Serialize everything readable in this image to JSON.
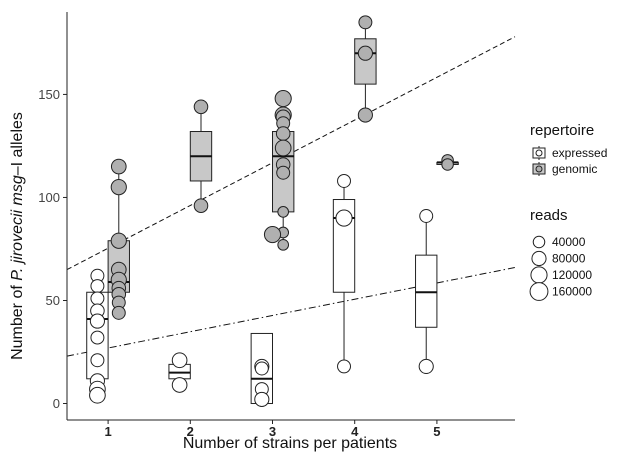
{
  "chart_data": {
    "type": "boxplot",
    "xlabel": "Number of strains per patients",
    "ylabel_parts": [
      "Number of ",
      "P. jirovecii msg",
      "–I alleles"
    ],
    "categories": [
      "1",
      "2",
      "3",
      "4",
      "5"
    ],
    "xlim": [
      0.5,
      5.95
    ],
    "ylim": [
      -8,
      190
    ],
    "yticks": [
      0,
      50,
      100,
      150
    ],
    "series": [
      {
        "name": "expressed",
        "fill": "#ffffff",
        "boxes": [
          {
            "x": 1,
            "q1": 12,
            "median": 41,
            "q3": 54,
            "whisker_low": 4,
            "whisker_high": 63
          },
          {
            "x": 2,
            "q1": 12,
            "median": 15,
            "q3": 19,
            "whisker_low": 12,
            "whisker_high": 19
          },
          {
            "x": 3,
            "q1": 0,
            "median": 12,
            "q3": 34,
            "whisker_low": 0,
            "whisker_high": 34
          },
          {
            "x": 4,
            "q1": 54,
            "median": 90,
            "q3": 99,
            "whisker_low": 18,
            "whisker_high": 108
          },
          {
            "x": 5,
            "q1": 37,
            "median": 54,
            "q3": 72,
            "whisker_low": 18,
            "whisker_high": 91
          }
        ],
        "points": [
          {
            "x": 1,
            "y": 62,
            "reads": 60000
          },
          {
            "x": 1,
            "y": 57,
            "reads": 60000
          },
          {
            "x": 1,
            "y": 51,
            "reads": 60000
          },
          {
            "x": 1,
            "y": 45,
            "reads": 70000
          },
          {
            "x": 1,
            "y": 40,
            "reads": 80000
          },
          {
            "x": 1,
            "y": 32,
            "reads": 60000
          },
          {
            "x": 1,
            "y": 21,
            "reads": 60000
          },
          {
            "x": 1,
            "y": 11,
            "reads": 80000
          },
          {
            "x": 1,
            "y": 7,
            "reads": 110000
          },
          {
            "x": 1,
            "y": 4,
            "reads": 110000
          },
          {
            "x": 2,
            "y": 21,
            "reads": 90000
          },
          {
            "x": 2,
            "y": 9,
            "reads": 90000
          },
          {
            "x": 3,
            "y": 18,
            "reads": 80000
          },
          {
            "x": 3,
            "y": 17,
            "reads": 60000
          },
          {
            "x": 3,
            "y": 7,
            "reads": 60000
          },
          {
            "x": 3,
            "y": 2,
            "reads": 80000
          },
          {
            "x": 4,
            "y": 108,
            "reads": 60000
          },
          {
            "x": 4,
            "y": 90,
            "reads": 120000
          },
          {
            "x": 4,
            "y": 18,
            "reads": 60000
          },
          {
            "x": 5,
            "y": 91,
            "reads": 60000
          },
          {
            "x": 5,
            "y": 18,
            "reads": 80000
          }
        ]
      },
      {
        "name": "genomic",
        "fill": "#c8c8c8",
        "boxes": [
          {
            "x": 1,
            "q1": 54,
            "median": 59,
            "q3": 79,
            "whisker_low": 43,
            "whisker_high": 115
          },
          {
            "x": 2,
            "q1": 108,
            "median": 120,
            "q3": 132,
            "whisker_low": 96,
            "whisker_high": 144
          },
          {
            "x": 3,
            "q1": 93,
            "median": 120,
            "q3": 132,
            "whisker_low": 77,
            "whisker_high": 148
          },
          {
            "x": 4,
            "q1": 155,
            "median": 170,
            "q3": 177,
            "whisker_low": 140,
            "whisker_high": 185
          },
          {
            "x": 5,
            "q1": 116,
            "median": 117,
            "q3": 117,
            "whisker_low": 116,
            "whisker_high": 117
          }
        ],
        "points": [
          {
            "x": 1,
            "y": 115,
            "reads": 90000
          },
          {
            "x": 1,
            "y": 105,
            "reads": 100000
          },
          {
            "x": 1,
            "y": 79,
            "reads": 100000
          },
          {
            "x": 1,
            "y": 65,
            "reads": 90000
          },
          {
            "x": 1,
            "y": 60,
            "reads": 100000
          },
          {
            "x": 1,
            "y": 56,
            "reads": 70000
          },
          {
            "x": 1,
            "y": 53,
            "reads": 70000
          },
          {
            "x": 1,
            "y": 49,
            "reads": 60000
          },
          {
            "x": 1,
            "y": 44,
            "reads": 60000
          },
          {
            "x": 2,
            "y": 144,
            "reads": 70000
          },
          {
            "x": 2,
            "y": 96,
            "reads": 70000
          },
          {
            "x": 3,
            "y": 148,
            "reads": 120000
          },
          {
            "x": 3,
            "y": 140,
            "reads": 120000
          },
          {
            "x": 3,
            "y": 139,
            "reads": 80000
          },
          {
            "x": 3,
            "y": 136,
            "reads": 60000
          },
          {
            "x": 3,
            "y": 131,
            "reads": 70000
          },
          {
            "x": 3,
            "y": 124,
            "reads": 110000
          },
          {
            "x": 3,
            "y": 116,
            "reads": 70000
          },
          {
            "x": 3,
            "y": 112,
            "reads": 60000
          },
          {
            "x": 3,
            "y": 93,
            "reads": 30000
          },
          {
            "x": 3,
            "y": 83,
            "reads": 30000
          },
          {
            "x": 3,
            "y": 77,
            "reads": 30000
          },
          {
            "x": 3,
            "y": 82,
            "reads": 120000
          },
          {
            "x": 4,
            "y": 185,
            "reads": 60000
          },
          {
            "x": 4,
            "y": 170,
            "reads": 80000
          },
          {
            "x": 4,
            "y": 140,
            "reads": 80000
          },
          {
            "x": 5,
            "y": 118,
            "reads": 40000
          },
          {
            "x": 5,
            "y": 116,
            "reads": 40000
          }
        ]
      }
    ],
    "trend_lines": [
      {
        "series": "genomic",
        "style": "dashed",
        "x": [
          0.5,
          5.95
        ],
        "y": [
          65,
          178
        ]
      },
      {
        "series": "expressed",
        "style": "dotdash",
        "x": [
          0.5,
          5.95
        ],
        "y": [
          23,
          66
        ]
      }
    ],
    "legend": {
      "position": "right",
      "repertoire_title": "repertoire",
      "repertoire_items": [
        "expressed",
        "genomic"
      ],
      "reads_title": "reads",
      "reads_items": [
        {
          "label": "40000",
          "value": 40000
        },
        {
          "label": "80000",
          "value": 80000
        },
        {
          "label": "120000",
          "value": 120000
        },
        {
          "label": "160000",
          "value": 160000
        }
      ]
    },
    "grid": false
  }
}
